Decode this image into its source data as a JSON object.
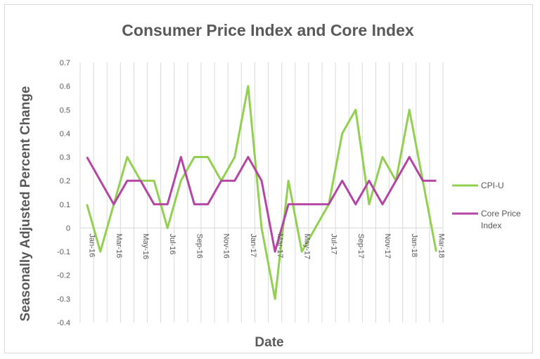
{
  "chart_data": {
    "type": "line",
    "title": "Consumer Price Index and Core Index",
    "xlabel": "Date",
    "ylabel": "Seasonally Adjusted Percent Change",
    "ylim": [
      -0.4,
      0.7
    ],
    "yticks": [
      "0.7",
      "0.6",
      "0.5",
      "0.4",
      "0.3",
      "0.2",
      "0.1",
      "0",
      "-0.1",
      "-0.2",
      "-0.3",
      "-0.4"
    ],
    "x": [
      "Jan-16",
      "Feb-16",
      "Mar-16",
      "Apr-16",
      "May-16",
      "Jun-16",
      "Jul-16",
      "Aug-16",
      "Sep-16",
      "Oct-16",
      "Nov-16",
      "Dec-16",
      "Jan-17",
      "Feb-17",
      "Mar-17",
      "Apr-17",
      "May-17",
      "Jun-17",
      "Jul-17",
      "Aug-17",
      "Sep-17",
      "Oct-17",
      "Nov-17",
      "Dec-17",
      "Jan-18",
      "Feb-18",
      "Mar-18"
    ],
    "xtick_labels": [
      "Jan-16",
      "Mar-16",
      "May-16",
      "Jul-16",
      "Sep-16",
      "Nov-16",
      "Jan-17",
      "Mar-17",
      "May-17",
      "Jul-17",
      "Sep-17",
      "Nov-17",
      "Jan-18",
      "Mar-18"
    ],
    "series": [
      {
        "name": "CPI-U",
        "color": "#92d050",
        "values": [
          0.1,
          -0.1,
          0.1,
          0.3,
          0.2,
          0.2,
          0.0,
          0.2,
          0.3,
          0.3,
          0.2,
          0.3,
          0.6,
          0.0,
          -0.3,
          0.2,
          -0.1,
          0.0,
          0.1,
          0.4,
          0.5,
          0.1,
          0.3,
          0.2,
          0.5,
          0.2,
          -0.1
        ]
      },
      {
        "name": "Core Price Index",
        "color": "#b545a4",
        "values": [
          0.3,
          0.2,
          0.1,
          0.2,
          0.2,
          0.1,
          0.1,
          0.3,
          0.1,
          0.1,
          0.2,
          0.2,
          0.3,
          0.2,
          -0.1,
          0.1,
          0.1,
          0.1,
          0.1,
          0.2,
          0.1,
          0.2,
          0.1,
          0.2,
          0.3,
          0.2,
          0.2
        ]
      }
    ],
    "legend": [
      "CPI-U",
      "Core Price",
      "Index"
    ],
    "legend_position": "right",
    "grid": "vertical"
  }
}
